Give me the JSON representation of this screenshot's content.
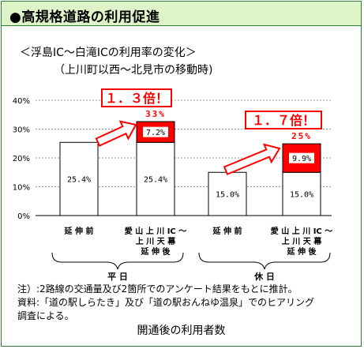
{
  "header": {
    "title": "●高規格道路の利用促進"
  },
  "chart_data": {
    "type": "bar",
    "title": "＜浮島IC～白滝ICの利用率の変化＞",
    "subtitle": "（上川町以西～北見市の移動時)",
    "ylim": [
      0,
      40
    ],
    "y_ticks": [
      "0%",
      "10%",
      "20%",
      "30%",
      "40%"
    ],
    "grid": true,
    "categories": [
      "延伸前",
      "愛山上川IC～上川天幕延伸後",
      "延伸前",
      "愛山上川IC～上川天幕延伸後"
    ],
    "category_lines": [
      [
        "延 伸 前"
      ],
      [
        "愛 山 上 川 IC ～",
        "上 川 天 幕",
        "延 伸 後"
      ],
      [
        "延 伸 前"
      ],
      [
        "愛 山 上 川 IC ～",
        "上 川 天 幕",
        "延 伸 後"
      ]
    ],
    "groups": [
      "平 日",
      "休 日"
    ],
    "series": [
      {
        "values": [
          25.4,
          25.4,
          15.0,
          15.0
        ],
        "labels": [
          "25.4%",
          "25.4%",
          "15.0%",
          "15.0%"
        ],
        "color": "#ffffff"
      },
      {
        "values": [
          0,
          7.2,
          0,
          9.9
        ],
        "labels": [
          "",
          "7.2%",
          "",
          "9.9%"
        ],
        "color": "#ff0000"
      }
    ],
    "totals": [
      "",
      "33%",
      "",
      "25%"
    ],
    "annotations": [
      "１．３倍！",
      "１．７倍！"
    ],
    "accent_color": "#ff0000"
  },
  "notes": [
    "注）:2路線の交通量及び2箇所でのアンケート結果をもとに推計。",
    "資料:「道の駅しらたき」及び「道の駅おんねゆ温泉」でのヒアリング",
    "調査による。"
  ],
  "caption": "開通後の利用者数"
}
